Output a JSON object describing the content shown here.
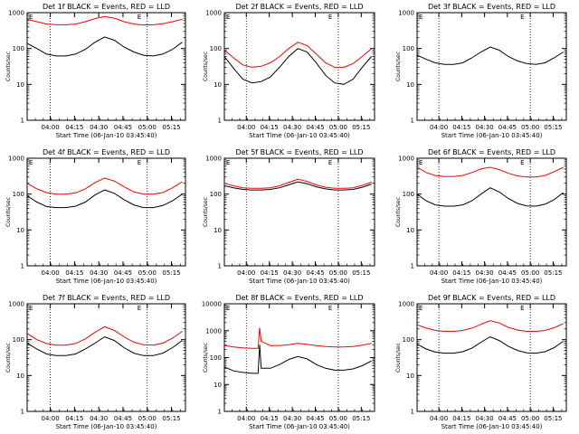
{
  "figure": {
    "ylabel": "Counts/sec",
    "xlabel": "Start Time (06-Jan-10 03:45:40)",
    "x_tick_labels": [
      "04:00",
      "04:15",
      "04:30",
      "04:45",
      "05:00",
      "05:15"
    ],
    "y_tick_labels_1000": [
      "1",
      "10",
      "100",
      "1000"
    ],
    "y_tick_labels_10000": [
      "1",
      "10",
      "100",
      "1000",
      "10000"
    ]
  },
  "colors": {
    "events": "#000000",
    "lld": "#ff0000"
  },
  "chart_data": [
    {
      "type": "line",
      "scale": "log",
      "ymax": 1000,
      "title": "Det 1f BLACK = Events, RED = LLD",
      "corner_labels": [
        "E",
        "E"
      ],
      "x_range_minutes_from_start": [
        0,
        98
      ],
      "series": [
        {
          "name": "Events",
          "x": [
            0,
            6,
            12,
            18,
            24,
            30,
            36,
            42,
            48,
            54,
            60,
            66,
            72,
            78,
            84,
            90,
            96
          ],
          "values": [
            140,
            100,
            70,
            62,
            62,
            70,
            95,
            150,
            210,
            170,
            110,
            80,
            65,
            62,
            70,
            95,
            150
          ]
        },
        {
          "name": "LLD",
          "x": [
            0,
            6,
            12,
            18,
            24,
            30,
            36,
            42,
            48,
            54,
            60,
            66,
            72,
            78,
            84,
            90,
            96
          ],
          "values": [
            650,
            560,
            480,
            460,
            460,
            480,
            560,
            680,
            780,
            700,
            560,
            480,
            455,
            460,
            490,
            560,
            650
          ]
        }
      ]
    },
    {
      "type": "line",
      "scale": "log",
      "ymax": 1000,
      "title": "Det 2f BLACK = Events, RED = LLD",
      "corner_labels": [
        "E",
        "E"
      ],
      "series": [
        {
          "name": "Events",
          "x": [
            0,
            6,
            12,
            18,
            24,
            30,
            36,
            42,
            48,
            54,
            60,
            66,
            72,
            78,
            84,
            90,
            96
          ],
          "values": [
            60,
            28,
            14,
            11,
            12,
            16,
            30,
            60,
            100,
            80,
            40,
            18,
            11,
            10,
            14,
            30,
            60
          ]
        },
        {
          "name": "LLD",
          "x": [
            0,
            6,
            12,
            18,
            24,
            30,
            36,
            42,
            48,
            54,
            60,
            66,
            72,
            78,
            84,
            90,
            96
          ],
          "values": [
            90,
            55,
            35,
            30,
            32,
            40,
            60,
            100,
            150,
            120,
            70,
            40,
            30,
            30,
            38,
            60,
            100
          ]
        }
      ]
    },
    {
      "type": "line",
      "scale": "log",
      "ymax": 1000,
      "title": "Det 3f BLACK = Events, RED = LLD",
      "corner_labels": [
        "E",
        "E"
      ],
      "series": [
        {
          "name": "Events",
          "x": [
            0,
            6,
            12,
            18,
            24,
            30,
            36,
            42,
            48,
            54,
            60,
            66,
            72,
            78,
            84,
            90,
            96
          ],
          "values": [
            65,
            50,
            40,
            36,
            36,
            40,
            55,
            80,
            110,
            90,
            60,
            45,
            38,
            36,
            40,
            55,
            80
          ]
        }
      ]
    },
    {
      "type": "line",
      "scale": "log",
      "ymax": 1000,
      "title": "Det 4f BLACK = Events, RED = LLD",
      "corner_labels": [
        "E",
        "E"
      ],
      "series": [
        {
          "name": "Events",
          "x": [
            0,
            6,
            12,
            18,
            24,
            30,
            36,
            42,
            48,
            54,
            60,
            66,
            72,
            78,
            84,
            90,
            96
          ],
          "values": [
            90,
            60,
            45,
            42,
            42,
            46,
            60,
            95,
            130,
            105,
            70,
            50,
            42,
            42,
            48,
            65,
            100
          ]
        },
        {
          "name": "LLD",
          "x": [
            0,
            6,
            12,
            18,
            24,
            30,
            36,
            42,
            48,
            54,
            60,
            66,
            72,
            78,
            84,
            90,
            96
          ],
          "values": [
            200,
            140,
            110,
            100,
            100,
            108,
            140,
            210,
            280,
            230,
            160,
            115,
            100,
            100,
            110,
            150,
            220
          ]
        }
      ]
    },
    {
      "type": "line",
      "scale": "log",
      "ymax": 1000,
      "title": "Det 5f BLACK = Events, RED = LLD",
      "corner_labels": [
        "E",
        "E"
      ],
      "series": [
        {
          "name": "Events",
          "x": [
            0,
            6,
            12,
            18,
            24,
            30,
            36,
            42,
            48,
            54,
            60,
            66,
            72,
            78,
            84,
            90,
            96
          ],
          "values": [
            170,
            150,
            135,
            130,
            130,
            135,
            150,
            180,
            220,
            195,
            160,
            140,
            130,
            130,
            135,
            155,
            190
          ]
        },
        {
          "name": "LLD",
          "x": [
            0,
            6,
            12,
            18,
            24,
            30,
            36,
            42,
            48,
            54,
            60,
            66,
            72,
            78,
            84,
            90,
            96
          ],
          "values": [
            200,
            170,
            150,
            145,
            145,
            150,
            170,
            210,
            260,
            225,
            180,
            155,
            145,
            145,
            150,
            175,
            215
          ]
        }
      ]
    },
    {
      "type": "line",
      "scale": "log",
      "ymax": 1000,
      "title": "Det 6f BLACK = Events, RED = LLD",
      "corner_labels": [
        "E",
        "E"
      ],
      "series": [
        {
          "name": "Events",
          "x": [
            0,
            6,
            12,
            18,
            24,
            30,
            36,
            42,
            48,
            54,
            60,
            66,
            72,
            78,
            84,
            90,
            96
          ],
          "values": [
            100,
            65,
            50,
            46,
            46,
            50,
            65,
            100,
            150,
            115,
            75,
            55,
            47,
            46,
            52,
            70,
            110
          ]
        },
        {
          "name": "LLD",
          "x": [
            0,
            6,
            12,
            18,
            24,
            30,
            36,
            42,
            48,
            54,
            60,
            66,
            72,
            78,
            84,
            90,
            96
          ],
          "values": [
            560,
            400,
            330,
            310,
            310,
            330,
            400,
            500,
            560,
            480,
            380,
            320,
            300,
            300,
            330,
            420,
            560
          ]
        }
      ]
    },
    {
      "type": "line",
      "scale": "log",
      "ymax": 1000,
      "title": "Det 7f BLACK = Events, RED = LLD",
      "corner_labels": [
        "E",
        "E"
      ],
      "series": [
        {
          "name": "Events",
          "x": [
            0,
            6,
            12,
            18,
            24,
            30,
            36,
            42,
            48,
            54,
            60,
            66,
            72,
            78,
            84,
            90,
            96
          ],
          "values": [
            80,
            55,
            40,
            36,
            36,
            40,
            55,
            80,
            120,
            95,
            60,
            42,
            36,
            36,
            42,
            60,
            95
          ]
        },
        {
          "name": "LLD",
          "x": [
            0,
            6,
            12,
            18,
            24,
            30,
            36,
            42,
            48,
            54,
            60,
            66,
            72,
            78,
            84,
            90,
            96
          ],
          "values": [
            150,
            100,
            78,
            70,
            70,
            78,
            105,
            160,
            230,
            180,
            120,
            85,
            72,
            70,
            80,
            110,
            170
          ]
        }
      ]
    },
    {
      "type": "line",
      "scale": "log",
      "ymax": 10000,
      "title": "Det 8f BLACK = Events, RED = LLD",
      "corner_labels": [
        "E",
        "E"
      ],
      "series": [
        {
          "name": "Events",
          "x": [
            0,
            6,
            12,
            18,
            22,
            23,
            24,
            30,
            36,
            42,
            48,
            54,
            60,
            66,
            72,
            78,
            84,
            90,
            96
          ],
          "values": [
            45,
            32,
            28,
            26,
            26,
            300,
            40,
            40,
            55,
            85,
            110,
            90,
            55,
            40,
            34,
            34,
            38,
            50,
            75
          ]
        },
        {
          "name": "LLD",
          "x": [
            0,
            6,
            12,
            18,
            22,
            23,
            24,
            30,
            36,
            42,
            48,
            54,
            60,
            66,
            72,
            78,
            84,
            90,
            96
          ],
          "values": [
            280,
            250,
            230,
            220,
            220,
            1300,
            400,
            280,
            280,
            300,
            340,
            310,
            280,
            260,
            250,
            250,
            260,
            290,
            340
          ]
        }
      ]
    },
    {
      "type": "line",
      "scale": "log",
      "ymax": 1000,
      "title": "Det 9f BLACK = Events, RED = LLD",
      "corner_labels": [
        "E",
        "E"
      ],
      "series": [
        {
          "name": "Events",
          "x": [
            0,
            6,
            12,
            18,
            24,
            30,
            36,
            42,
            48,
            54,
            60,
            66,
            72,
            78,
            84,
            90,
            96
          ],
          "values": [
            75,
            55,
            45,
            42,
            42,
            46,
            58,
            85,
            120,
            95,
            65,
            50,
            43,
            42,
            46,
            60,
            90
          ]
        },
        {
          "name": "LLD",
          "x": [
            0,
            6,
            12,
            18,
            24,
            30,
            36,
            42,
            48,
            54,
            60,
            66,
            72,
            78,
            84,
            90,
            96
          ],
          "values": [
            260,
            210,
            180,
            170,
            170,
            180,
            210,
            270,
            340,
            290,
            220,
            185,
            170,
            170,
            180,
            215,
            280
          ]
        }
      ]
    }
  ]
}
